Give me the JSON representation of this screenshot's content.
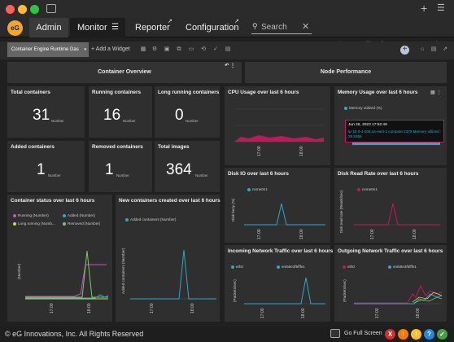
{
  "nav": {
    "tabs": [
      "Admin",
      "Monitor",
      "Reporter",
      "Configuration"
    ],
    "search_placeholder": "Search"
  },
  "toolbar": {
    "dashboard_name": "Container Engine Runtime Das",
    "add_widget": "+ Add a Widget"
  },
  "sections": {
    "left": "Container Overview",
    "right": "Node Performance"
  },
  "stats": [
    {
      "label": "Total containers",
      "value": "31",
      "unit": "Number"
    },
    {
      "label": "Running containers",
      "value": "16",
      "unit": "Number"
    },
    {
      "label": "Long running containers",
      "value": "0",
      "unit": "Number"
    },
    {
      "label": "Added containers",
      "value": "1",
      "unit": "Number"
    },
    {
      "label": "Removed containers",
      "value": "1",
      "unit": "Number"
    },
    {
      "label": "Total images",
      "value": "364",
      "unit": "Number"
    }
  ],
  "panels": {
    "cpu": {
      "title": "CPU Usage over last 6 hours",
      "ticks": [
        "17:00",
        "18:00"
      ]
    },
    "memory": {
      "title": "Memory Usage over last 6 hours",
      "legend": "Memory utilized (%)",
      "tooltip_time": "Jun 26, 2023 17:52:49",
      "tooltip_host": "ip-10-0-4-208.us-east-2.compute:2379 Memory utilized : 29.8269"
    },
    "disk_io": {
      "title": "Disk IO over last 6 hours",
      "legend": "nvme0n1",
      "ylabel": "Disk busy (%)",
      "ticks": [
        "17:00",
        "18:00"
      ]
    },
    "disk_read": {
      "title": "Disk Read Rate over last 6 hours",
      "legend": "nvme0n1",
      "ylabel": "Disk read rate (Reads/sec)",
      "ticks": [
        "17:00",
        "18:00"
      ]
    },
    "status": {
      "title": "Container status over last 6 hours",
      "legend": [
        "Running (Number)",
        "Added (Number)",
        "Long running (Numb...",
        "Removed (Number)"
      ],
      "ylabel": "(Number)",
      "ticks": [
        "17:00",
        "18:00"
      ]
    },
    "new_containers": {
      "title": "New containers created over last 6 hours",
      "legend": "Added containers (Number)",
      "ylabel": "Added containers (Number)",
      "ticks": [
        "17:00",
        "18:00"
      ]
    },
    "incoming": {
      "title": "Incoming Network Traffic over last 6 hours",
      "legend": [
        "eth0",
        "eni58e3f5fffe1"
      ],
      "ylabel": "(Packets/sec)",
      "ticks": [
        "17:00",
        "18:00"
      ]
    },
    "outgoing": {
      "title": "Outgoing Network Traffic over last 6 hours",
      "legend": [
        "eth0",
        "eni58e3f5fffe1"
      ],
      "ylabel": "(Packets/sec)",
      "ticks": [
        "17:00",
        "18:00"
      ]
    }
  },
  "footer": {
    "copyright": "© eG Innovations, Inc. All Rights Reserved",
    "fullscreen": "Go Full Screen",
    "badges": [
      "X",
      "!",
      "!",
      "?",
      "✓"
    ]
  },
  "colors": {
    "accent": "#f5a623",
    "running": "#d24ec0",
    "added": "#2aa9c9",
    "long_running": "#d4d44a",
    "removed": "#7cc76b",
    "cpu": "#c2185b"
  }
}
